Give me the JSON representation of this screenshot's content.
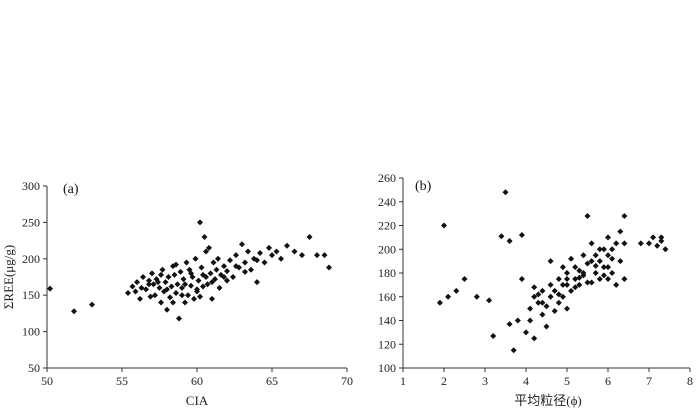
{
  "chart_data": [
    {
      "type": "scatter",
      "panel_label": "(a)",
      "xlabel": "CIA",
      "ylabel": "ΣREE(μg/g)",
      "xlim": [
        50,
        70
      ],
      "ylim": [
        50,
        300
      ],
      "xticks": [
        50,
        55,
        60,
        65,
        70
      ],
      "yticks": [
        50,
        100,
        150,
        200,
        250,
        300
      ],
      "marker": "diamond",
      "marker_color": "#111111",
      "grid": false,
      "points": [
        [
          50.2,
          159
        ],
        [
          51.8,
          128
        ],
        [
          53.0,
          137
        ],
        [
          55.4,
          153
        ],
        [
          55.7,
          162
        ],
        [
          55.9,
          155
        ],
        [
          56.0,
          168
        ],
        [
          56.2,
          145
        ],
        [
          56.3,
          160
        ],
        [
          56.4,
          175
        ],
        [
          56.6,
          158
        ],
        [
          56.8,
          170
        ],
        [
          56.9,
          148
        ],
        [
          57.0,
          180
        ],
        [
          57.1,
          165
        ],
        [
          57.2,
          150
        ],
        [
          57.3,
          172
        ],
        [
          57.5,
          160
        ],
        [
          57.6,
          140
        ],
        [
          57.7,
          185
        ],
        [
          57.8,
          155
        ],
        [
          57.9,
          168
        ],
        [
          58.0,
          130
        ],
        [
          58.1,
          175
        ],
        [
          58.2,
          147
        ],
        [
          58.3,
          162
        ],
        [
          58.4,
          190
        ],
        [
          58.5,
          178
        ],
        [
          58.6,
          153
        ],
        [
          58.7,
          165
        ],
        [
          58.8,
          118
        ],
        [
          58.9,
          182
        ],
        [
          59.0,
          160
        ],
        [
          59.1,
          172
        ],
        [
          59.2,
          140
        ],
        [
          59.3,
          195
        ],
        [
          59.4,
          150
        ],
        [
          59.5,
          185
        ],
        [
          59.6,
          163
        ],
        [
          59.7,
          175
        ],
        [
          59.8,
          145
        ],
        [
          59.9,
          200
        ],
        [
          60.0,
          158
        ],
        [
          60.1,
          170
        ],
        [
          60.2,
          250
        ],
        [
          60.3,
          188
        ],
        [
          60.4,
          162
        ],
        [
          60.5,
          230
        ],
        [
          60.6,
          175
        ],
        [
          60.7,
          165
        ],
        [
          60.8,
          215
        ],
        [
          60.9,
          180
        ],
        [
          61.0,
          168
        ],
        [
          61.1,
          195
        ],
        [
          61.2,
          172
        ],
        [
          61.3,
          185
        ],
        [
          61.5,
          160
        ],
        [
          61.6,
          178
        ],
        [
          61.8,
          190
        ],
        [
          62.0,
          183
        ],
        [
          62.2,
          198
        ],
        [
          62.4,
          175
        ],
        [
          62.6,
          205
        ],
        [
          62.8,
          188
        ],
        [
          63.0,
          220
        ],
        [
          63.2,
          195
        ],
        [
          63.4,
          210
        ],
        [
          63.6,
          185
        ],
        [
          63.8,
          200
        ],
        [
          64.0,
          168
        ],
        [
          64.2,
          208
        ],
        [
          64.5,
          195
        ],
        [
          64.8,
          215
        ],
        [
          65.0,
          205
        ],
        [
          65.3,
          210
        ],
        [
          65.6,
          200
        ],
        [
          66.0,
          218
        ],
        [
          66.5,
          210
        ],
        [
          67.0,
          205
        ],
        [
          67.5,
          230
        ],
        [
          68.0,
          205
        ],
        [
          68.5,
          205
        ],
        [
          68.8,
          188
        ],
        [
          57.4,
          168
        ],
        [
          58.0,
          158
        ],
        [
          58.6,
          192
        ],
        [
          59.0,
          150
        ],
        [
          59.6,
          180
        ],
        [
          60.0,
          155
        ],
        [
          60.4,
          178
        ],
        [
          61.4,
          200
        ],
        [
          62.0,
          170
        ],
        [
          62.6,
          190
        ],
        [
          63.2,
          182
        ],
        [
          64.0,
          198
        ],
        [
          61.0,
          145
        ],
        [
          60.2,
          148
        ],
        [
          59.2,
          165
        ],
        [
          56.8,
          165
        ],
        [
          57.6,
          178
        ],
        [
          58.4,
          140
        ],
        [
          60.6,
          210
        ],
        [
          61.8,
          175
        ]
      ]
    },
    {
      "type": "scatter",
      "panel_label": "(b)",
      "xlabel": "平均粒径(ϕ)",
      "ylabel": "",
      "xlim": [
        1,
        8
      ],
      "ylim": [
        100,
        260
      ],
      "xticks": [
        1,
        2,
        3,
        4,
        5,
        6,
        7,
        8
      ],
      "yticks": [
        100,
        120,
        140,
        160,
        180,
        200,
        220,
        240,
        260
      ],
      "marker": "diamond",
      "marker_color": "#111111",
      "grid": false,
      "points": [
        [
          1.9,
          155
        ],
        [
          2.0,
          220
        ],
        [
          2.1,
          160
        ],
        [
          2.3,
          165
        ],
        [
          2.5,
          175
        ],
        [
          2.8,
          160
        ],
        [
          3.1,
          157
        ],
        [
          3.2,
          127
        ],
        [
          3.4,
          211
        ],
        [
          3.5,
          248
        ],
        [
          3.6,
          207
        ],
        [
          3.6,
          137
        ],
        [
          3.7,
          115
        ],
        [
          3.8,
          140
        ],
        [
          3.9,
          212
        ],
        [
          3.9,
          175
        ],
        [
          4.0,
          130
        ],
        [
          4.1,
          150
        ],
        [
          4.1,
          140
        ],
        [
          4.2,
          125
        ],
        [
          4.2,
          168
        ],
        [
          4.3,
          162
        ],
        [
          4.3,
          155
        ],
        [
          4.4,
          145
        ],
        [
          4.4,
          165
        ],
        [
          4.5,
          135
        ],
        [
          4.5,
          152
        ],
        [
          4.6,
          160
        ],
        [
          4.6,
          190
        ],
        [
          4.7,
          148
        ],
        [
          4.7,
          165
        ],
        [
          4.8,
          155
        ],
        [
          4.8,
          175
        ],
        [
          4.9,
          160
        ],
        [
          4.9,
          185
        ],
        [
          5.0,
          170
        ],
        [
          5.0,
          150
        ],
        [
          5.0,
          180
        ],
        [
          5.1,
          165
        ],
        [
          5.1,
          192
        ],
        [
          5.2,
          175
        ],
        [
          5.2,
          185
        ],
        [
          5.3,
          170
        ],
        [
          5.3,
          182
        ],
        [
          5.4,
          195
        ],
        [
          5.4,
          178
        ],
        [
          5.5,
          228
        ],
        [
          5.5,
          188
        ],
        [
          5.6,
          172
        ],
        [
          5.6,
          205
        ],
        [
          5.7,
          180
        ],
        [
          5.7,
          195
        ],
        [
          5.8,
          175
        ],
        [
          5.8,
          190
        ],
        [
          5.9,
          200
        ],
        [
          5.9,
          185
        ],
        [
          6.0,
          195
        ],
        [
          6.0,
          210
        ],
        [
          6.1,
          180
        ],
        [
          6.1,
          200
        ],
        [
          6.2,
          170
        ],
        [
          6.3,
          190
        ],
        [
          6.3,
          215
        ],
        [
          6.4,
          205
        ],
        [
          6.4,
          228
        ],
        [
          6.4,
          175
        ],
        [
          6.8,
          205
        ],
        [
          7.0,
          205
        ],
        [
          7.1,
          210
        ],
        [
          7.2,
          203
        ],
        [
          7.3,
          207
        ],
        [
          7.3,
          210
        ],
        [
          7.4,
          200
        ],
        [
          4.2,
          160
        ],
        [
          4.6,
          170
        ],
        [
          5.0,
          175
        ],
        [
          5.2,
          168
        ],
        [
          5.4,
          180
        ],
        [
          5.6,
          190
        ],
        [
          5.8,
          200
        ],
        [
          6.0,
          185
        ],
        [
          6.2,
          205
        ],
        [
          4.4,
          155
        ],
        [
          4.8,
          162
        ],
        [
          5.3,
          176
        ],
        [
          5.7,
          186
        ],
        [
          6.0,
          175
        ],
        [
          4.9,
          170
        ],
        [
          5.5,
          172
        ],
        [
          6.1,
          192
        ],
        [
          5.9,
          178
        ]
      ]
    }
  ]
}
